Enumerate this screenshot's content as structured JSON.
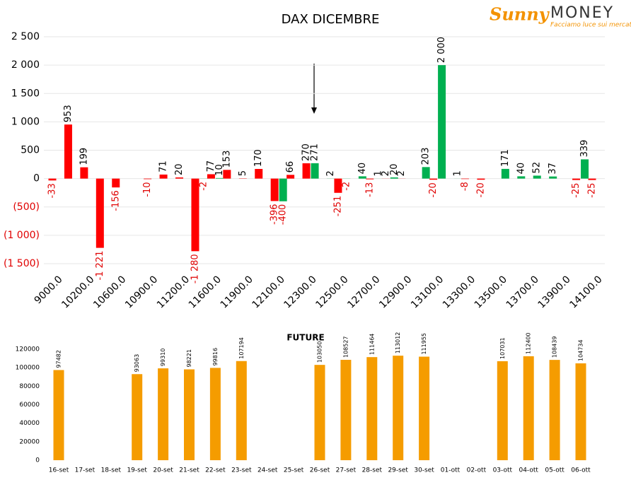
{
  "logo": {
    "brand": "Sunny",
    "name": "MONEY",
    "tagline": "Facciamo luce sui mercati"
  },
  "chart_data": [
    {
      "type": "bar",
      "title": "DAX DICEMBRE",
      "categories": [
        "9000.0",
        null,
        "10200.0",
        null,
        "10600.0",
        null,
        "10900.0",
        null,
        "11200.0",
        null,
        "11600.0",
        null,
        "11900.0",
        null,
        "12100.0",
        null,
        "12300.0",
        null,
        "12500.0",
        null,
        "12700.0",
        null,
        "12900.0",
        null,
        "13100.0",
        null,
        "13300.0",
        null,
        "13500.0",
        null,
        "13700.0",
        null,
        "13900.0",
        null,
        "14100.0"
      ],
      "series": [
        {
          "color": "#ff0000",
          "values": [
            -33,
            953,
            199,
            -1221,
            -156,
            null,
            -10,
            71,
            20,
            -1280,
            77,
            153,
            5,
            170,
            -396,
            66,
            270,
            null,
            -251,
            null,
            -13,
            2,
            2,
            null,
            -20,
            null,
            -8,
            -20,
            null,
            null,
            null,
            null,
            null,
            -25,
            -25
          ],
          "value_labels": [
            "-33",
            "953",
            "199",
            "-1 221",
            "-156",
            null,
            "-10",
            "71",
            "20",
            "-1 280",
            "77",
            "153",
            "5",
            "170",
            "-396",
            "66",
            "270",
            null,
            "-251",
            null,
            "-13",
            "2",
            "2",
            null,
            "-20",
            null,
            "-8",
            "-20",
            null,
            null,
            null,
            null,
            null,
            "-25",
            "-25"
          ]
        },
        {
          "color": "#00b050",
          "values": [
            null,
            null,
            null,
            null,
            null,
            null,
            null,
            null,
            null,
            -2,
            10,
            null,
            null,
            null,
            -400,
            null,
            271,
            2,
            -2,
            40,
            1,
            20,
            null,
            203,
            2000,
            1,
            null,
            null,
            171,
            40,
            52,
            37,
            null,
            339,
            null
          ],
          "value_labels": [
            null,
            null,
            null,
            null,
            null,
            null,
            null,
            null,
            null,
            "-2",
            "10",
            null,
            null,
            null,
            "-400",
            null,
            "271",
            "2",
            "-2",
            "40",
            "1",
            "20",
            null,
            "203",
            "2 000",
            "1",
            null,
            null,
            "171",
            "40",
            "52",
            "37",
            null,
            "339",
            null
          ]
        }
      ],
      "ylim": [
        -1500,
        2500
      ],
      "yticks": [
        {
          "value": -1500,
          "label": "(1 500)"
        },
        {
          "value": -1000,
          "label": "(1 000)"
        },
        {
          "value": -500,
          "label": "(500)"
        },
        0,
        500,
        {
          "value": 1000,
          "label": "1 000"
        },
        {
          "value": 1500,
          "label": "1 500"
        },
        {
          "value": 2000,
          "label": "2 000"
        },
        {
          "value": 2500,
          "label": "2 500"
        }
      ],
      "grid": true
    },
    {
      "type": "bar",
      "title": "FUTURE",
      "categories": [
        "16-set",
        "17-set",
        "18-set",
        "19-set",
        "20-set",
        "21-set",
        "22-set",
        "23-set",
        "24-set",
        "25-set",
        "26-set",
        "27-set",
        "28-set",
        "29-set",
        "30-set",
        "01-ott",
        "02-ott",
        "03-ott",
        "04-ott",
        "05-ott",
        "06-ott"
      ],
      "values": [
        97482,
        null,
        null,
        93063,
        99310,
        98221,
        99816,
        107194,
        null,
        null,
        103050,
        108527,
        111464,
        113012,
        111955,
        null,
        null,
        107031,
        112400,
        108439,
        104734
      ],
      "color": "#f59c00",
      "ylim": [
        0,
        120000
      ],
      "yticks": [
        0,
        20000,
        40000,
        60000,
        80000,
        100000,
        120000
      ],
      "grid": false
    }
  ]
}
